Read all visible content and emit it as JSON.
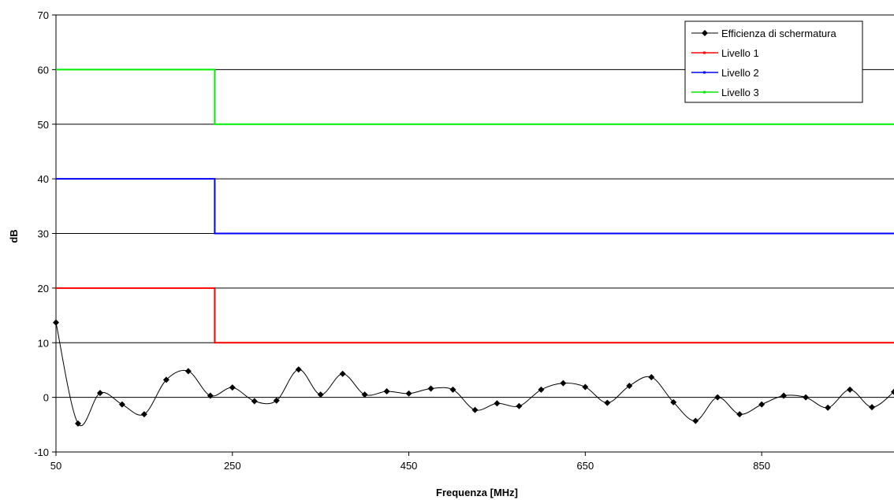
{
  "chart_data": {
    "type": "line",
    "title": "",
    "xlabel": "Frequenza [MHz]",
    "ylabel": "dB",
    "xlim": [
      50,
      1000
    ],
    "ylim": [
      -10,
      70
    ],
    "x_ticks": [
      50,
      250,
      450,
      650,
      850
    ],
    "x_tick_labels": [
      "50",
      "250",
      "450",
      "650",
      "850"
    ],
    "y_ticks": [
      -10,
      0,
      10,
      20,
      30,
      40,
      50,
      60,
      70
    ],
    "y_tick_labels": [
      "-10",
      "0",
      "10",
      "20",
      "30",
      "40",
      "50",
      "60",
      "70"
    ],
    "grid": "horizontal",
    "legend_position": "top-right",
    "series": [
      {
        "name": "Efficienza di schermatura",
        "color": "#000000",
        "marker": "diamond",
        "smooth": true,
        "x": [
          50,
          75,
          100,
          125,
          150,
          175,
          200,
          225,
          250,
          275,
          300,
          325,
          350,
          375,
          400,
          425,
          450,
          475,
          500,
          525,
          550,
          575,
          600,
          625,
          650,
          675,
          700,
          725,
          750,
          775,
          800,
          825,
          850,
          875,
          900,
          925,
          950,
          975,
          1000
        ],
        "values": [
          13.7,
          -4.8,
          0.8,
          -1.3,
          -3.1,
          3.2,
          4.8,
          0.3,
          1.8,
          -0.7,
          -0.6,
          5.1,
          0.5,
          4.3,
          0.5,
          1.1,
          0.7,
          1.6,
          1.4,
          -2.3,
          -1.1,
          -1.6,
          1.4,
          2.6,
          1.9,
          -1.0,
          2.1,
          3.7,
          -0.9,
          -4.3,
          0.0,
          -3.1,
          -1.3,
          0.3,
          0.0,
          -1.9,
          1.4,
          -1.8,
          1.0
        ]
      },
      {
        "name": "Livello 1",
        "color": "#ff0000",
        "step": true,
        "x": [
          50,
          230,
          230,
          1000
        ],
        "values": [
          20,
          20,
          10,
          10
        ]
      },
      {
        "name": "Livello 2",
        "color": "#0000ff",
        "step": true,
        "x": [
          50,
          230,
          230,
          1000
        ],
        "values": [
          40,
          40,
          30,
          30
        ]
      },
      {
        "name": "Livello 3",
        "color": "#00ee00",
        "step": true,
        "x": [
          50,
          230,
          230,
          1000
        ],
        "values": [
          60,
          60,
          50,
          50
        ]
      }
    ]
  }
}
